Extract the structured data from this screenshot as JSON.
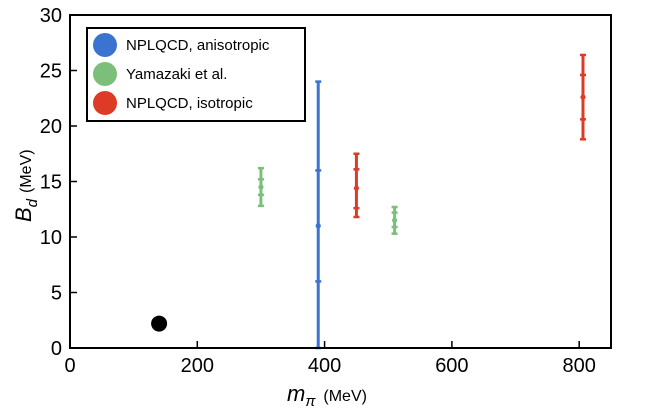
{
  "chart_data": {
    "type": "scatter",
    "title": "",
    "xlabel": {
      "symbol": "m",
      "subscript": "π",
      "unit": "(MeV)"
    },
    "ylabel": {
      "symbol": "B",
      "subscript": "d",
      "unit": "(MeV)"
    },
    "xlim": [
      0,
      850
    ],
    "ylim": [
      0,
      30
    ],
    "xticks": [
      0,
      200,
      400,
      600,
      800
    ],
    "yticks": [
      0,
      5,
      10,
      15,
      20,
      25,
      30
    ],
    "grid": false,
    "legend_position": "top-left",
    "series": [
      {
        "name": "NPLQCD, anisotropic",
        "color": "#3b73d1",
        "points": [
          {
            "x": 390,
            "y": 11,
            "inner": [
              6,
              16
            ],
            "outer": [
              0,
              24
            ]
          }
        ]
      },
      {
        "name": "Yamazaki et al.",
        "color": "#7cbf7a",
        "points": [
          {
            "x": 300,
            "y": 14.5,
            "inner": [
              13.8,
              15.2
            ],
            "outer": [
              12.8,
              16.2
            ]
          },
          {
            "x": 510,
            "y": 11.5,
            "inner": [
              10.9,
              12.2
            ],
            "outer": [
              10.3,
              12.7
            ]
          }
        ]
      },
      {
        "name": "NPLQCD, isotropic",
        "color": "#de3b26",
        "points": [
          {
            "x": 450,
            "y": 14.4,
            "inner": [
              12.6,
              16.1
            ],
            "outer": [
              11.8,
              17.5
            ]
          },
          {
            "x": 806,
            "y": 22.6,
            "inner": [
              20.6,
              24.6
            ],
            "outer": [
              18.8,
              26.4
            ]
          }
        ]
      }
    ],
    "reference_point": {
      "x": 140,
      "y": 2.2,
      "color": "#000000"
    }
  }
}
